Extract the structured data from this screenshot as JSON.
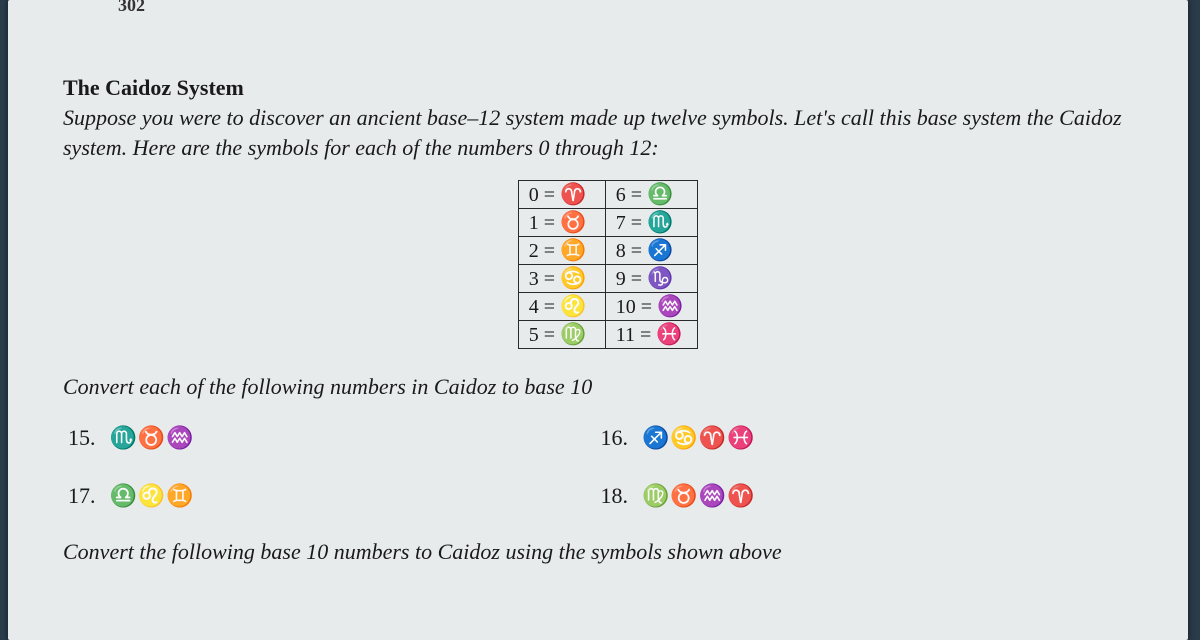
{
  "page_num_fragment": "302",
  "title": "The Caidoz System",
  "intro": "Suppose you were to discover an ancient base–12 system made up twelve symbols. Let's call this base system the Caidoz system. Here are the symbols for each of the numbers 0 through 12:",
  "table": {
    "rows": [
      {
        "l_num": "0",
        "l_sym": "♈",
        "r_num": "6",
        "r_sym": "♎"
      },
      {
        "l_num": "1",
        "l_sym": "♉",
        "r_num": "7",
        "r_sym": "♏"
      },
      {
        "l_num": "2",
        "l_sym": "♊",
        "r_num": "8",
        "r_sym": "♐"
      },
      {
        "l_num": "3",
        "l_sym": "♋",
        "r_num": "9",
        "r_sym": "♑"
      },
      {
        "l_num": "4",
        "l_sym": "♌",
        "r_num": "10",
        "r_sym": "♒"
      },
      {
        "l_num": "5",
        "l_sym": "♍",
        "r_num": "11",
        "r_sym": "♓"
      }
    ]
  },
  "section1": "Convert each of the following numbers in Caidoz to base 10",
  "problems": [
    {
      "n": "15.",
      "s": "♏♉♒"
    },
    {
      "n": "16.",
      "s": "♐♋♈♓"
    },
    {
      "n": "17.",
      "s": "♎♌♊"
    },
    {
      "n": "18.",
      "s": "♍♉♒♈"
    }
  ],
  "footer_cut": "Convert the following base 10 numbers to Caidoz  using the symbols shown above"
}
